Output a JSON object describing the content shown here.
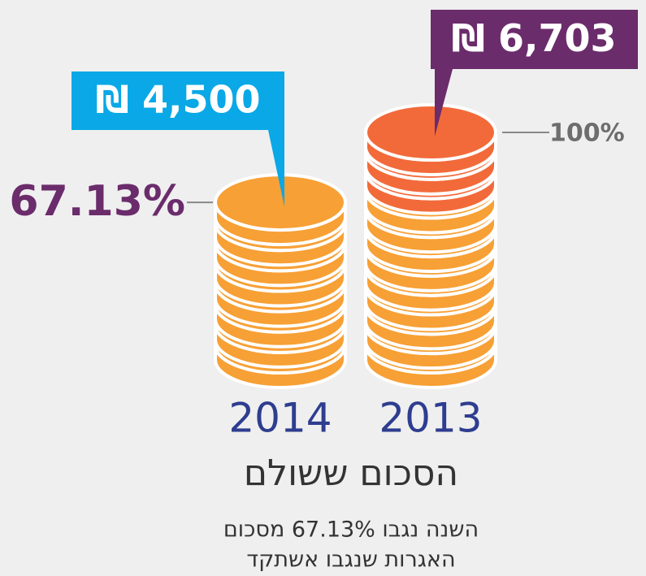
{
  "chart_data": {
    "type": "coins",
    "categories": [
      "2014",
      "2013"
    ],
    "values": [
      4500,
      6703
    ],
    "value_labels": [
      "₪ 4,500",
      "₪ 6,703"
    ],
    "annotations": [
      "67.13%",
      "100%"
    ],
    "title": "הסכום ששולם",
    "subtitle": [
      "השנה נגבו 67.13% מסכום",
      "האגרות שנגבו אשתקד"
    ],
    "colors": [
      "#f7a035",
      "#f7a035"
    ],
    "top_color": "#f26a3a",
    "label_colors": [
      "#0aa8e6",
      "#6b2c6b"
    ]
  }
}
